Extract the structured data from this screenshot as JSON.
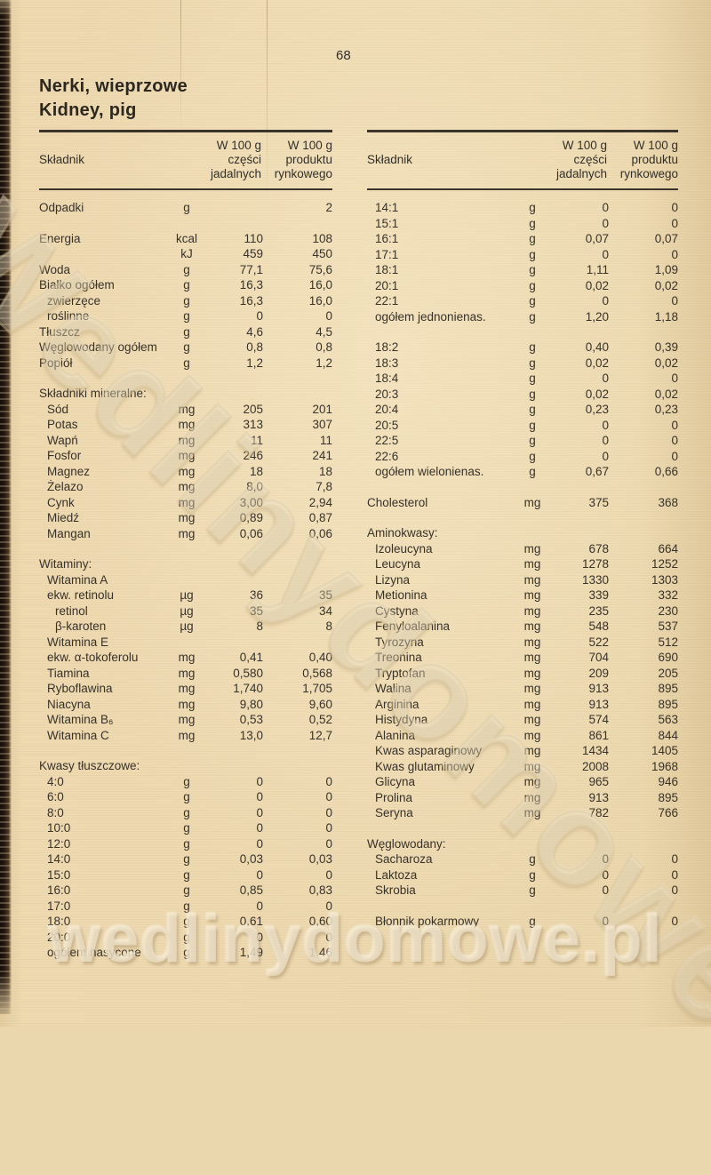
{
  "page": {
    "number": "68",
    "title_line1": "Nerki, wieprzowe",
    "title_line2": "Kidney, pig"
  },
  "table_header": {
    "skladnik": "Składnik",
    "col1": [
      "W 100 g",
      "części",
      "jadalnych"
    ],
    "col2": [
      "W 100 g",
      "produktu",
      "rynkowego"
    ]
  },
  "left_table": {
    "rows": [
      {
        "l": "Odpadki",
        "u": "g",
        "a": "",
        "b": "2"
      },
      {
        "t": "sp"
      },
      {
        "l": "Energia",
        "u": "kcal",
        "a": "110",
        "b": "108"
      },
      {
        "l": "",
        "u": "kJ",
        "a": "459",
        "b": "450"
      },
      {
        "l": "Woda",
        "u": "g",
        "a": "77,1",
        "b": "75,6"
      },
      {
        "l": "Białko ogółem",
        "u": "g",
        "a": "16,3",
        "b": "16,0"
      },
      {
        "l": "zwierzęce",
        "i": 1,
        "u": "g",
        "a": "16,3",
        "b": "16,0"
      },
      {
        "l": "roślinne",
        "i": 1,
        "u": "g",
        "a": "0",
        "b": "0"
      },
      {
        "l": "Tłuszcz",
        "u": "g",
        "a": "4,6",
        "b": "4,5"
      },
      {
        "l": "Węglowodany ogółem",
        "u": "g",
        "a": "0,8",
        "b": "0,8"
      },
      {
        "l": "Popiół",
        "u": "g",
        "a": "1,2",
        "b": "1,2"
      },
      {
        "t": "sp"
      },
      {
        "t": "s",
        "l": "Składniki mineralne:"
      },
      {
        "l": "Sód",
        "i": 1,
        "u": "mg",
        "a": "205",
        "b": "201"
      },
      {
        "l": "Potas",
        "i": 1,
        "u": "mg",
        "a": "313",
        "b": "307"
      },
      {
        "l": "Wapń",
        "i": 1,
        "u": "mg",
        "a": "11",
        "b": "11"
      },
      {
        "l": "Fosfor",
        "i": 1,
        "u": "mg",
        "a": "246",
        "b": "241"
      },
      {
        "l": "Magnez",
        "i": 1,
        "u": "mg",
        "a": "18",
        "b": "18"
      },
      {
        "l": "Żelazo",
        "i": 1,
        "u": "mg",
        "a": "8,0",
        "b": "7,8"
      },
      {
        "l": "Cynk",
        "i": 1,
        "u": "mg",
        "a": "3,00",
        "b": "2,94"
      },
      {
        "l": "Miedź",
        "i": 1,
        "u": "mg",
        "a": "0,89",
        "b": "0,87"
      },
      {
        "l": "Mangan",
        "i": 1,
        "u": "mg",
        "a": "0,06",
        "b": "0,06"
      },
      {
        "t": "sp"
      },
      {
        "t": "s",
        "l": "Witaminy:"
      },
      {
        "l": "Witamina A",
        "i": 1,
        "u": "",
        "a": "",
        "b": ""
      },
      {
        "l": "ekw. retinolu",
        "i": 1,
        "u": "µg",
        "a": "36",
        "b": "35"
      },
      {
        "l": "retinol",
        "i": 2,
        "u": "µg",
        "a": "35",
        "b": "34"
      },
      {
        "l": "β-karoten",
        "i": 2,
        "u": "µg",
        "a": "8",
        "b": "8"
      },
      {
        "l": "Witamina E",
        "i": 1,
        "u": "",
        "a": "",
        "b": ""
      },
      {
        "l": "ekw. α-tokoferolu",
        "i": 1,
        "u": "mg",
        "a": "0,41",
        "b": "0,40"
      },
      {
        "l": "Tiamina",
        "i": 1,
        "u": "mg",
        "a": "0,580",
        "b": "0,568"
      },
      {
        "l": "Ryboflawina",
        "i": 1,
        "u": "mg",
        "a": "1,740",
        "b": "1,705"
      },
      {
        "l": "Niacyna",
        "i": 1,
        "u": "mg",
        "a": "9,80",
        "b": "9,60"
      },
      {
        "l": "Witamina B₆",
        "i": 1,
        "u": "mg",
        "a": "0,53",
        "b": "0,52"
      },
      {
        "l": "Witamina C",
        "i": 1,
        "u": "mg",
        "a": "13,0",
        "b": "12,7"
      },
      {
        "t": "sp"
      },
      {
        "t": "s",
        "l": "Kwasy tłuszczowe:"
      },
      {
        "l": "4:0",
        "i": 1,
        "u": "g",
        "a": "0",
        "b": "0"
      },
      {
        "l": "6:0",
        "i": 1,
        "u": "g",
        "a": "0",
        "b": "0"
      },
      {
        "l": "8:0",
        "i": 1,
        "u": "g",
        "a": "0",
        "b": "0"
      },
      {
        "l": "10:0",
        "i": 1,
        "u": "g",
        "a": "0",
        "b": "0"
      },
      {
        "l": "12:0",
        "i": 1,
        "u": "g",
        "a": "0",
        "b": "0"
      },
      {
        "l": "14:0",
        "i": 1,
        "u": "g",
        "a": "0,03",
        "b": "0,03"
      },
      {
        "l": "15:0",
        "i": 1,
        "u": "g",
        "a": "0",
        "b": "0"
      },
      {
        "l": "16:0",
        "i": 1,
        "u": "g",
        "a": "0,85",
        "b": "0,83"
      },
      {
        "l": "17:0",
        "i": 1,
        "u": "g",
        "a": "0",
        "b": "0"
      },
      {
        "l": "18:0",
        "i": 1,
        "u": "g",
        "a": "0,61",
        "b": "0,60"
      },
      {
        "l": "20:0",
        "i": 1,
        "u": "g",
        "a": "0",
        "b": "0"
      },
      {
        "l": "ogółem nasycone",
        "i": 1,
        "u": "g",
        "a": "1,49",
        "b": "1,46"
      }
    ]
  },
  "right_table": {
    "rows": [
      {
        "l": "14:1",
        "i": 1,
        "u": "g",
        "a": "0",
        "b": "0"
      },
      {
        "l": "15:1",
        "i": 1,
        "u": "g",
        "a": "0",
        "b": "0"
      },
      {
        "l": "16:1",
        "i": 1,
        "u": "g",
        "a": "0,07",
        "b": "0,07"
      },
      {
        "l": "17:1",
        "i": 1,
        "u": "g",
        "a": "0",
        "b": "0"
      },
      {
        "l": "18:1",
        "i": 1,
        "u": "g",
        "a": "1,11",
        "b": "1,09"
      },
      {
        "l": "20:1",
        "i": 1,
        "u": "g",
        "a": "0,02",
        "b": "0,02"
      },
      {
        "l": "22:1",
        "i": 1,
        "u": "g",
        "a": "0",
        "b": "0"
      },
      {
        "l": "ogółem jednonienas.",
        "i": 1,
        "u": "g",
        "a": "1,20",
        "b": "1,18"
      },
      {
        "t": "sp"
      },
      {
        "l": "18:2",
        "i": 1,
        "u": "g",
        "a": "0,40",
        "b": "0,39"
      },
      {
        "l": "18:3",
        "i": 1,
        "u": "g",
        "a": "0,02",
        "b": "0,02"
      },
      {
        "l": "18:4",
        "i": 1,
        "u": "g",
        "a": "0",
        "b": "0"
      },
      {
        "l": "20:3",
        "i": 1,
        "u": "g",
        "a": "0,02",
        "b": "0,02"
      },
      {
        "l": "20:4",
        "i": 1,
        "u": "g",
        "a": "0,23",
        "b": "0,23"
      },
      {
        "l": "20:5",
        "i": 1,
        "u": "g",
        "a": "0",
        "b": "0"
      },
      {
        "l": "22:5",
        "i": 1,
        "u": "g",
        "a": "0",
        "b": "0"
      },
      {
        "l": "22:6",
        "i": 1,
        "u": "g",
        "a": "0",
        "b": "0"
      },
      {
        "l": "ogółem wielonienas.",
        "i": 1,
        "u": "g",
        "a": "0,67",
        "b": "0,66"
      },
      {
        "t": "sp"
      },
      {
        "l": "Cholesterol",
        "u": "mg",
        "a": "375",
        "b": "368"
      },
      {
        "t": "sp"
      },
      {
        "t": "s",
        "l": "Aminokwasy:"
      },
      {
        "l": "Izoleucyna",
        "i": 1,
        "u": "mg",
        "a": "678",
        "b": "664"
      },
      {
        "l": "Leucyna",
        "i": 1,
        "u": "mg",
        "a": "1278",
        "b": "1252"
      },
      {
        "l": "Lizyna",
        "i": 1,
        "u": "mg",
        "a": "1330",
        "b": "1303"
      },
      {
        "l": "Metionina",
        "i": 1,
        "u": "mg",
        "a": "339",
        "b": "332"
      },
      {
        "l": "Cystyna",
        "i": 1,
        "u": "mg",
        "a": "235",
        "b": "230"
      },
      {
        "l": "Fenyloalanina",
        "i": 1,
        "u": "mg",
        "a": "548",
        "b": "537"
      },
      {
        "l": "Tyrozyna",
        "i": 1,
        "u": "mg",
        "a": "522",
        "b": "512"
      },
      {
        "l": "Treonina",
        "i": 1,
        "u": "mg",
        "a": "704",
        "b": "690"
      },
      {
        "l": "Tryptofan",
        "i": 1,
        "u": "mg",
        "a": "209",
        "b": "205"
      },
      {
        "l": "Walina",
        "i": 1,
        "u": "mg",
        "a": "913",
        "b": "895"
      },
      {
        "l": "Arginina",
        "i": 1,
        "u": "mg",
        "a": "913",
        "b": "895"
      },
      {
        "l": "Histydyna",
        "i": 1,
        "u": "mg",
        "a": "574",
        "b": "563"
      },
      {
        "l": "Alanina",
        "i": 1,
        "u": "mg",
        "a": "861",
        "b": "844"
      },
      {
        "l": "Kwas asparaginowy",
        "i": 1,
        "u": "mg",
        "a": "1434",
        "b": "1405"
      },
      {
        "l": "Kwas glutaminowy",
        "i": 1,
        "u": "mg",
        "a": "2008",
        "b": "1968"
      },
      {
        "l": "Glicyna",
        "i": 1,
        "u": "mg",
        "a": "965",
        "b": "946"
      },
      {
        "l": "Prolina",
        "i": 1,
        "u": "mg",
        "a": "913",
        "b": "895"
      },
      {
        "l": "Seryna",
        "i": 1,
        "u": "mg",
        "a": "782",
        "b": "766"
      },
      {
        "t": "sp"
      },
      {
        "t": "s",
        "l": "Węglowodany:"
      },
      {
        "l": "Sacharoza",
        "i": 1,
        "u": "g",
        "a": "0",
        "b": "0"
      },
      {
        "l": "Laktoza",
        "i": 1,
        "u": "g",
        "a": "0",
        "b": "0"
      },
      {
        "l": "Skrobia",
        "i": 1,
        "u": "g",
        "a": "0",
        "b": "0"
      },
      {
        "t": "sp"
      },
      {
        "l": "Błonnik pokarmowy",
        "i": 1,
        "u": "g",
        "a": "0",
        "b": "0"
      }
    ]
  },
  "watermark": {
    "diagonal": "Wedlinydomowe.pl",
    "bottom": "wedlinydomowe.pl"
  },
  "colors": {
    "paper": "#ebd7ae",
    "ink": "#37322a",
    "rule": "#3a342b",
    "spine": "#241810",
    "watermark": "#f3e8ce"
  }
}
